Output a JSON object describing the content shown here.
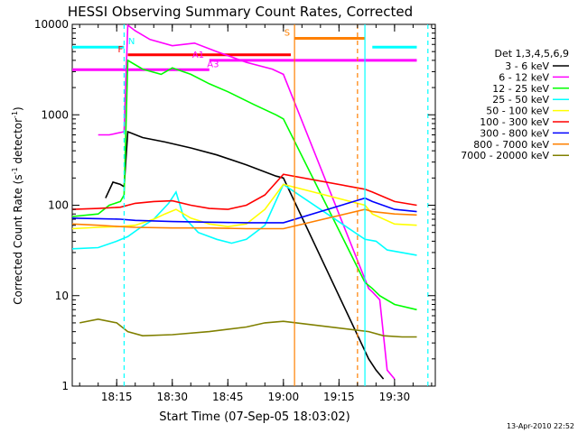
{
  "chart_data": {
    "type": "line",
    "title": "HESSI Observing Summary Count Rates, Corrected",
    "xlabel": "Start Time (07-Sep-05 18:03:02)",
    "ylabel": "Corrected Count Rate (s⁻¹ detector⁻¹)",
    "ylabel_main": "Corrected Count Rate (s",
    "ylabel_sup1": "-1",
    "ylabel_mid": " detector",
    "ylabel_sup2": "-1",
    "ylabel_end": ")",
    "y_scale": "log",
    "ylim": [
      1,
      10000
    ],
    "xlim": [
      "18:03",
      "19:41"
    ],
    "x_ticks": [
      "18:15",
      "18:30",
      "18:45",
      "19:00",
      "19:15",
      "19:30"
    ],
    "y_ticks": [
      "1",
      "10",
      "100",
      "1000",
      "10000"
    ],
    "footer": "13-Apr-2010 22:52",
    "legend": {
      "title": "Det 1,3,4,5,6,9",
      "position": "right"
    },
    "series": [
      {
        "name": "3 - 6 keV",
        "color": "#000000",
        "points": [
          [
            "18:12",
            120
          ],
          [
            "18:14",
            180
          ],
          [
            "18:16",
            170
          ],
          [
            "18:17",
            160
          ],
          [
            "18:18",
            650
          ],
          [
            "18:22",
            560
          ],
          [
            "18:28",
            500
          ],
          [
            "18:35",
            430
          ],
          [
            "18:42",
            360
          ],
          [
            "18:50",
            280
          ],
          [
            "18:58",
            210
          ],
          [
            "19:00",
            200
          ],
          [
            "19:23",
            2
          ],
          [
            "19:25",
            1.5
          ],
          [
            "19:27",
            1.2
          ]
        ]
      },
      {
        "name": "6 - 12 keV",
        "color": "#ff00ff",
        "points": [
          [
            "18:10",
            600
          ],
          [
            "18:13",
            600
          ],
          [
            "18:17",
            650
          ],
          [
            "18:18",
            9800
          ],
          [
            "18:20",
            8500
          ],
          [
            "18:24",
            6800
          ],
          [
            "18:30",
            5800
          ],
          [
            "18:36",
            6200
          ],
          [
            "18:42",
            5000
          ],
          [
            "18:50",
            3800
          ],
          [
            "18:57",
            3200
          ],
          [
            "19:00",
            2800
          ],
          [
            "19:23",
            12
          ],
          [
            "19:24",
            11
          ],
          [
            "19:26",
            9
          ],
          [
            "19:28",
            1.5
          ],
          [
            "19:30",
            1.2
          ]
        ]
      },
      {
        "name": "12 - 25 keV",
        "color": "#00ff00",
        "points": [
          [
            "18:03",
            75
          ],
          [
            "18:10",
            80
          ],
          [
            "18:13",
            100
          ],
          [
            "18:16",
            110
          ],
          [
            "18:17",
            130
          ],
          [
            "18:18",
            4000
          ],
          [
            "18:22",
            3200
          ],
          [
            "18:27",
            2800
          ],
          [
            "18:30",
            3300
          ],
          [
            "18:35",
            2800
          ],
          [
            "18:40",
            2200
          ],
          [
            "18:45",
            1800
          ],
          [
            "18:52",
            1300
          ],
          [
            "18:58",
            1000
          ],
          [
            "19:00",
            900
          ],
          [
            "19:22",
            14
          ],
          [
            "19:24",
            12
          ],
          [
            "19:26",
            10
          ],
          [
            "19:30",
            8
          ],
          [
            "19:36",
            7
          ]
        ]
      },
      {
        "name": "25 - 50 keV",
        "color": "#00ffff",
        "points": [
          [
            "18:03",
            33
          ],
          [
            "18:10",
            34
          ],
          [
            "18:15",
            40
          ],
          [
            "18:18",
            45
          ],
          [
            "18:21",
            55
          ],
          [
            "18:25",
            70
          ],
          [
            "18:29",
            105
          ],
          [
            "18:31",
            140
          ],
          [
            "18:33",
            75
          ],
          [
            "18:37",
            50
          ],
          [
            "18:42",
            42
          ],
          [
            "18:46",
            38
          ],
          [
            "18:50",
            42
          ],
          [
            "18:55",
            60
          ],
          [
            "19:00",
            170
          ],
          [
            "19:22",
            42
          ],
          [
            "19:25",
            40
          ],
          [
            "19:28",
            32
          ],
          [
            "19:36",
            28
          ]
        ]
      },
      {
        "name": "50 - 100 keV",
        "color": "#ffff00",
        "points": [
          [
            "18:03",
            55
          ],
          [
            "18:10",
            57
          ],
          [
            "18:16",
            58
          ],
          [
            "18:20",
            60
          ],
          [
            "18:25",
            70
          ],
          [
            "18:28",
            80
          ],
          [
            "18:31",
            90
          ],
          [
            "18:35",
            72
          ],
          [
            "18:40",
            62
          ],
          [
            "18:45",
            58
          ],
          [
            "18:50",
            62
          ],
          [
            "18:55",
            90
          ],
          [
            "19:00",
            170
          ],
          [
            "19:22",
            100
          ],
          [
            "19:24",
            80
          ],
          [
            "19:30",
            62
          ],
          [
            "19:36",
            60
          ]
        ]
      },
      {
        "name": "100 - 300 keV",
        "color": "#ff0000",
        "points": [
          [
            "18:03",
            90
          ],
          [
            "18:10",
            92
          ],
          [
            "18:16",
            95
          ],
          [
            "18:20",
            105
          ],
          [
            "18:25",
            110
          ],
          [
            "18:30",
            112
          ],
          [
            "18:35",
            100
          ],
          [
            "18:40",
            92
          ],
          [
            "18:45",
            90
          ],
          [
            "18:50",
            100
          ],
          [
            "18:55",
            130
          ],
          [
            "19:00",
            220
          ],
          [
            "19:22",
            150
          ],
          [
            "19:24",
            140
          ],
          [
            "19:30",
            110
          ],
          [
            "19:36",
            100
          ]
        ]
      },
      {
        "name": "300 - 800 keV",
        "color": "#0000ff",
        "points": [
          [
            "18:03",
            72
          ],
          [
            "18:10",
            71
          ],
          [
            "18:16",
            70
          ],
          [
            "18:20",
            68
          ],
          [
            "18:30",
            66
          ],
          [
            "18:40",
            65
          ],
          [
            "18:50",
            64
          ],
          [
            "19:00",
            64
          ],
          [
            "19:22",
            120
          ],
          [
            "19:24",
            110
          ],
          [
            "19:30",
            90
          ],
          [
            "19:36",
            85
          ]
        ]
      },
      {
        "name": "800 - 7000 keV",
        "color": "#ff8000",
        "points": [
          [
            "18:03",
            62
          ],
          [
            "18:10",
            60
          ],
          [
            "18:16",
            58
          ],
          [
            "18:20",
            57
          ],
          [
            "18:30",
            56
          ],
          [
            "18:40",
            56
          ],
          [
            "18:50",
            55
          ],
          [
            "19:00",
            55
          ],
          [
            "19:22",
            90
          ],
          [
            "19:24",
            85
          ],
          [
            "19:30",
            80
          ],
          [
            "19:36",
            78
          ]
        ]
      },
      {
        "name": "7000 - 20000 keV",
        "color": "#808000",
        "points": [
          [
            "18:05",
            5
          ],
          [
            "18:10",
            5.5
          ],
          [
            "18:15",
            5
          ],
          [
            "18:18",
            4
          ],
          [
            "18:22",
            3.6
          ],
          [
            "18:30",
            3.7
          ],
          [
            "18:40",
            4
          ],
          [
            "18:50",
            4.5
          ],
          [
            "18:55",
            5
          ],
          [
            "19:00",
            5.2
          ],
          [
            "19:23",
            4
          ],
          [
            "19:27",
            3.6
          ],
          [
            "19:32",
            3.5
          ],
          [
            "19:36",
            3.5
          ]
        ]
      }
    ],
    "annotation_bars": [
      {
        "label": "N",
        "color": "#00ffff",
        "y": 5600,
        "x0": "18:03",
        "x1": "18:17",
        "label_x": "18:19"
      },
      {
        "label": "",
        "color": "#00ffff",
        "y": 5600,
        "x0": "19:24",
        "x1": "19:36",
        "label_x": ""
      },
      {
        "label": "F",
        "color": "#ff0000",
        "y": 4600,
        "x0": "18:18",
        "x1": "19:02",
        "label_x": "18:16"
      },
      {
        "label": "A1",
        "color": "#ff00ff",
        "y": 4000,
        "x0": "18:40",
        "x1": "19:36",
        "label_x": "18:37"
      },
      {
        "label": "A3",
        "color": "#ff00ff",
        "y": 3150,
        "x0": "18:03",
        "x1": "18:40",
        "label_x": "18:41"
      },
      {
        "label": "S",
        "color": "#ff8000",
        "y": 7000,
        "x0": "19:03",
        "x1": "19:22",
        "label_x": "19:01"
      }
    ],
    "vertical_markers": [
      {
        "x": "18:17",
        "color": "#00ffff",
        "style": "dashed"
      },
      {
        "x": "19:03",
        "color": "#ff8000",
        "style": "solid"
      },
      {
        "x": "19:20",
        "color": "#ff8000",
        "style": "dashed"
      },
      {
        "x": "19:22",
        "color": "#00ffff",
        "style": "solid"
      },
      {
        "x": "19:39",
        "color": "#00ffff",
        "style": "dashed"
      }
    ]
  }
}
